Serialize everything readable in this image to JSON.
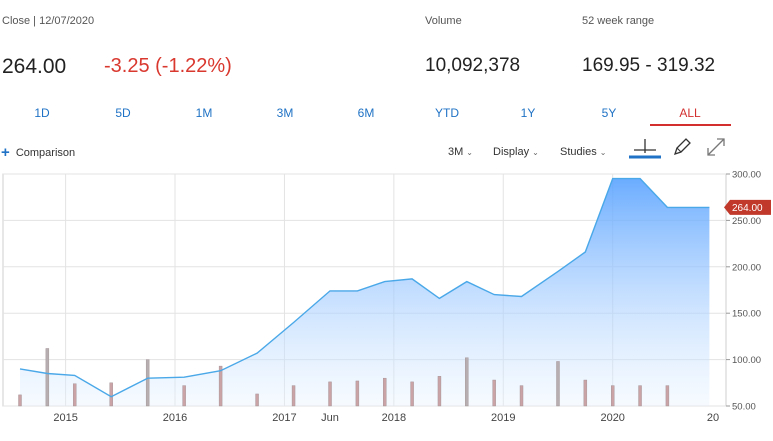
{
  "header": {
    "close_label": "Close | 12/07/2020",
    "close_value": "264.00",
    "change": "-3.25 (-1.22%)",
    "volume_label": "Volume",
    "volume_value": "10,092,378",
    "range_label": "52 week range",
    "range_value": "169.95 - 319.32"
  },
  "ranges": [
    "1D",
    "5D",
    "1M",
    "3M",
    "6M",
    "YTD",
    "1Y",
    "5Y",
    "ALL"
  ],
  "active_range": "ALL",
  "toolbar": {
    "comparison": "Comparison",
    "interval": "3M",
    "display": "Display",
    "studies": "Studies"
  },
  "colors": {
    "accent": "#1f72c5",
    "negative": "#d9382f",
    "line": "#4aa8e8",
    "price_tag": "#c0392b"
  },
  "chart_data": {
    "type": "area",
    "x": [
      "2014-08",
      "2014-11",
      "2015-02",
      "2015-06",
      "2015-10",
      "2016-02",
      "2016-06",
      "2016-10",
      "2017-02",
      "2017-06",
      "2017-09",
      "2017-12",
      "2018-03",
      "2018-06",
      "2018-09",
      "2018-12",
      "2019-03",
      "2019-07",
      "2019-10",
      "2020-01",
      "2020-04",
      "2020-07"
    ],
    "series": [
      {
        "values": [
          90,
          85,
          83,
          60,
          80,
          81,
          88,
          107,
          140,
          174,
          174,
          184,
          187,
          166,
          184,
          170,
          168,
          195,
          216,
          295,
          295,
          264
        ]
      }
    ],
    "volume_bars": [
      62,
      112,
      74,
      75,
      100,
      72,
      93,
      63,
      72,
      76,
      77,
      80,
      76,
      82,
      102,
      78,
      72,
      98,
      78,
      72,
      72,
      72
    ],
    "ylim": [
      50,
      300
    ],
    "yticks": [
      "300.00",
      "250.00",
      "200.00",
      "150.00",
      "100.00",
      "50.00"
    ],
    "xticks": [
      "2015",
      "2016",
      "2017",
      "Jun",
      "2018",
      "2019",
      "2020",
      "20"
    ],
    "last_price_label": "264.00",
    "grid": true
  }
}
